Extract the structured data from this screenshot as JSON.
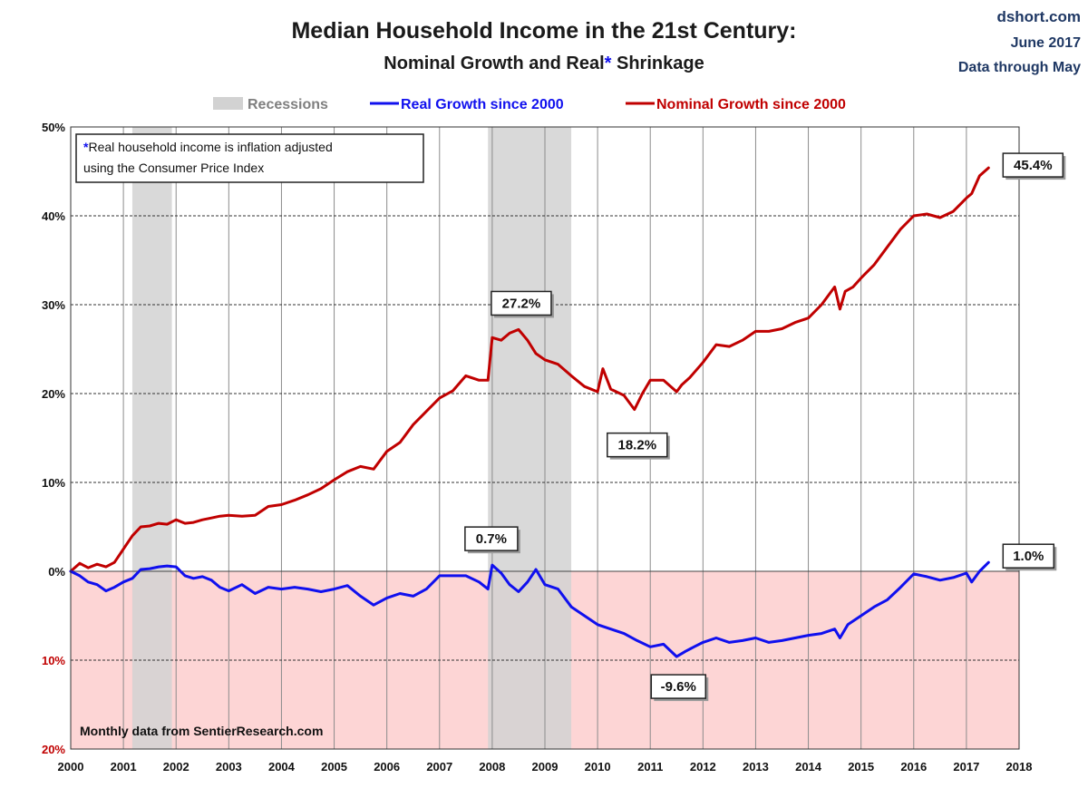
{
  "title": "Median Household Income in the 21st Century:",
  "subtitle_part1": "Nominal  Growth and Real",
  "subtitle_asterisk": "*",
  "subtitle_part2": " Shrinkage",
  "source": {
    "site": "dshort.com",
    "date": "June 2017",
    "through": "Data through May"
  },
  "legend": {
    "recessions": "Recessions",
    "real": "Real Growth since 2000",
    "nominal": "Nominal Growth since 2000"
  },
  "note": {
    "asterisk": "*",
    "line1": "Real household  income is inflation adjusted",
    "line2": "using  the Consumer Price Index"
  },
  "footer_note": "Monthly data from SentierResearch.com",
  "colors": {
    "real": "#1010ee",
    "nominal": "#c00000",
    "recession": "#d2d2d2",
    "negative_zone": "#fdd5d5",
    "asterisk": "#1010ee",
    "source": "#1f3864",
    "negative_tick": "#c00000"
  },
  "chart_data": {
    "type": "line",
    "title": "Median Household Income in the 21st Century: Nominal Growth and Real* Shrinkage",
    "xlim": [
      2000,
      2018
    ],
    "ylim": [
      -20,
      50
    ],
    "xticks": [
      2000,
      2001,
      2002,
      2003,
      2004,
      2005,
      2006,
      2007,
      2008,
      2009,
      2010,
      2011,
      2012,
      2013,
      2014,
      2015,
      2016,
      2017,
      2018
    ],
    "yticks": [
      {
        "value": 50,
        "label": "50%"
      },
      {
        "value": 40,
        "label": "40%"
      },
      {
        "value": 30,
        "label": "30%"
      },
      {
        "value": 20,
        "label": "20%"
      },
      {
        "value": 10,
        "label": "10%"
      },
      {
        "value": 0,
        "label": "0%"
      },
      {
        "value": -10,
        "label": "10%"
      },
      {
        "value": -20,
        "label": "20%"
      }
    ],
    "recessions": [
      [
        2001.17,
        2001.92
      ],
      [
        2007.92,
        2009.5
      ]
    ],
    "series": [
      {
        "name": "Nominal Growth since 2000",
        "x": [
          2000.0,
          2000.17,
          2000.33,
          2000.5,
          2000.67,
          2000.83,
          2001.0,
          2001.17,
          2001.33,
          2001.5,
          2001.67,
          2001.83,
          2002.0,
          2002.17,
          2002.33,
          2002.5,
          2002.67,
          2002.83,
          2003.0,
          2003.25,
          2003.5,
          2003.75,
          2004.0,
          2004.25,
          2004.5,
          2004.75,
          2005.0,
          2005.25,
          2005.5,
          2005.75,
          2006.0,
          2006.25,
          2006.5,
          2006.75,
          2007.0,
          2007.25,
          2007.5,
          2007.75,
          2007.92,
          2008.0,
          2008.17,
          2008.33,
          2008.5,
          2008.67,
          2008.83,
          2009.0,
          2009.25,
          2009.5,
          2009.75,
          2010.0,
          2010.1,
          2010.25,
          2010.5,
          2010.7,
          2010.85,
          2011.0,
          2011.25,
          2011.5,
          2011.6,
          2011.75,
          2012.0,
          2012.25,
          2012.5,
          2012.75,
          2013.0,
          2013.25,
          2013.5,
          2013.75,
          2014.0,
          2014.25,
          2014.5,
          2014.6,
          2014.7,
          2014.85,
          2015.0,
          2015.25,
          2015.5,
          2015.75,
          2016.0,
          2016.25,
          2016.5,
          2016.75,
          2017.0,
          2017.1,
          2017.25,
          2017.42
        ],
        "values": [
          0.0,
          0.9,
          0.4,
          0.8,
          0.5,
          1.0,
          2.5,
          4.0,
          5.0,
          5.1,
          5.4,
          5.3,
          5.8,
          5.4,
          5.5,
          5.8,
          6.0,
          6.2,
          6.3,
          6.2,
          6.3,
          7.3,
          7.5,
          8.0,
          8.6,
          9.3,
          10.3,
          11.2,
          11.8,
          11.5,
          13.5,
          14.5,
          16.5,
          18.0,
          19.5,
          20.3,
          22.0,
          21.5,
          21.5,
          26.3,
          26.0,
          26.8,
          27.2,
          26.0,
          24.5,
          23.8,
          23.3,
          22.0,
          20.8,
          20.2,
          22.8,
          20.5,
          19.8,
          18.2,
          20.0,
          21.5,
          21.5,
          20.2,
          21.0,
          21.8,
          23.5,
          25.5,
          25.3,
          26.0,
          27.0,
          27.0,
          27.3,
          28.0,
          28.5,
          30.0,
          32.0,
          29.5,
          31.5,
          32.0,
          33.0,
          34.5,
          36.5,
          38.5,
          40.0,
          40.2,
          39.8,
          40.5,
          42.0,
          42.5,
          44.5,
          45.4
        ]
      },
      {
        "name": "Real Growth since 2000",
        "x": [
          2000.0,
          2000.17,
          2000.33,
          2000.5,
          2000.67,
          2000.83,
          2001.0,
          2001.17,
          2001.33,
          2001.5,
          2001.67,
          2001.83,
          2002.0,
          2002.17,
          2002.33,
          2002.5,
          2002.67,
          2002.83,
          2003.0,
          2003.25,
          2003.5,
          2003.75,
          2004.0,
          2004.25,
          2004.5,
          2004.75,
          2005.0,
          2005.25,
          2005.5,
          2005.75,
          2006.0,
          2006.25,
          2006.5,
          2006.75,
          2007.0,
          2007.25,
          2007.5,
          2007.75,
          2007.92,
          2008.0,
          2008.17,
          2008.33,
          2008.5,
          2008.67,
          2008.83,
          2009.0,
          2009.25,
          2009.5,
          2009.75,
          2010.0,
          2010.25,
          2010.5,
          2010.75,
          2011.0,
          2011.25,
          2011.5,
          2011.67,
          2011.83,
          2012.0,
          2012.25,
          2012.5,
          2012.75,
          2013.0,
          2013.25,
          2013.5,
          2013.75,
          2014.0,
          2014.25,
          2014.5,
          2014.6,
          2014.75,
          2015.0,
          2015.25,
          2015.5,
          2015.75,
          2016.0,
          2016.25,
          2016.5,
          2016.75,
          2017.0,
          2017.1,
          2017.25,
          2017.42
        ],
        "values": [
          0.0,
          -0.5,
          -1.2,
          -1.5,
          -2.2,
          -1.8,
          -1.2,
          -0.8,
          0.2,
          0.3,
          0.5,
          0.6,
          0.5,
          -0.5,
          -0.8,
          -0.6,
          -1.0,
          -1.8,
          -2.2,
          -1.5,
          -2.5,
          -1.8,
          -2.0,
          -1.8,
          -2.0,
          -2.3,
          -2.0,
          -1.6,
          -2.8,
          -3.8,
          -3.0,
          -2.5,
          -2.8,
          -2.0,
          -0.5,
          -0.5,
          -0.5,
          -1.2,
          -2.0,
          0.7,
          -0.2,
          -1.5,
          -2.3,
          -1.2,
          0.2,
          -1.5,
          -2.0,
          -4.0,
          -5.0,
          -6.0,
          -6.5,
          -7.0,
          -7.8,
          -8.5,
          -8.2,
          -9.6,
          -9.0,
          -8.5,
          -8.0,
          -7.5,
          -8.0,
          -7.8,
          -7.5,
          -8.0,
          -7.8,
          -7.5,
          -7.2,
          -7.0,
          -6.5,
          -7.5,
          -6.0,
          -5.0,
          -4.0,
          -3.2,
          -1.8,
          -0.3,
          -0.6,
          -1.0,
          -0.7,
          -0.2,
          -1.2,
          0.0,
          1.0
        ]
      }
    ],
    "annotations": [
      {
        "label": "45.4%",
        "x": 2017.42,
        "y": 45.4
      },
      {
        "label": "27.2%",
        "x": 2008.5,
        "y": 27.2
      },
      {
        "label": "18.2%",
        "x": 2010.7,
        "y": 18.2
      },
      {
        "label": "0.7%",
        "x": 2008.0,
        "y": 0.7
      },
      {
        "label": "1.0%",
        "x": 2017.42,
        "y": 1.0
      },
      {
        "label": "-9.6%",
        "x": 2011.5,
        "y": -9.6
      }
    ]
  }
}
